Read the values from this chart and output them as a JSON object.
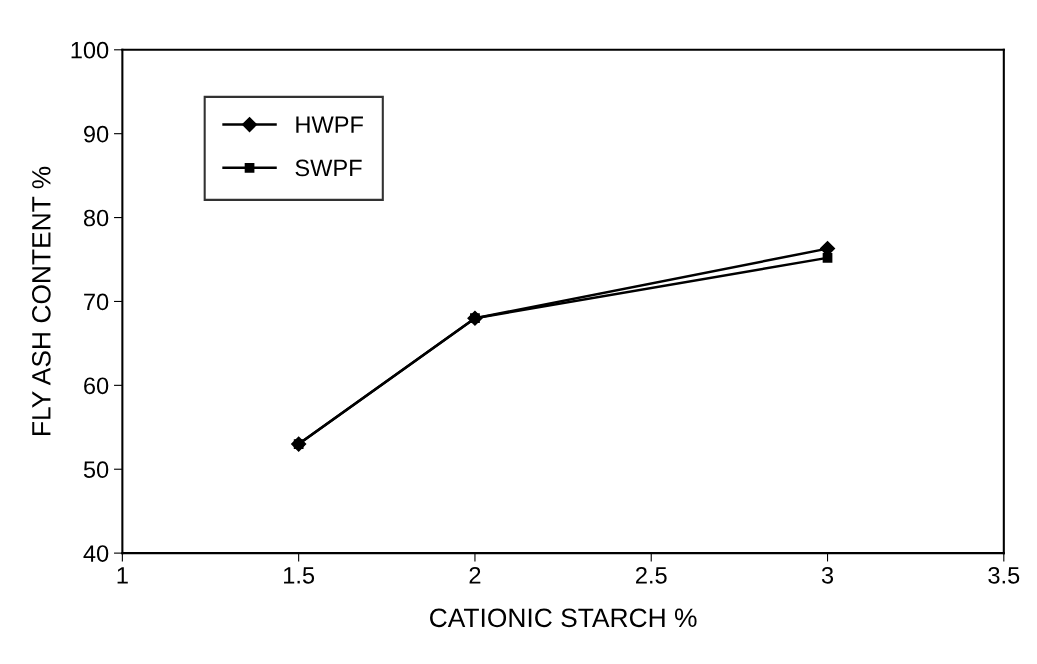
{
  "chart_data": {
    "type": "line",
    "xlabel": "CATIONIC STARCH %",
    "ylabel": "FLY ASH CONTENT %",
    "x": [
      1.5,
      2,
      3
    ],
    "series": [
      {
        "name": "HWPF",
        "color": "#000000",
        "marker": "diamond",
        "values": [
          53,
          68,
          76.3
        ]
      },
      {
        "name": "SWPF",
        "color": "#000000",
        "marker": "square",
        "values": [
          53,
          68,
          75.2
        ]
      }
    ],
    "xlim": [
      1,
      3.5
    ],
    "xticks": [
      1,
      1.5,
      2,
      2.5,
      3,
      3.5
    ],
    "ylim": [
      40,
      100
    ],
    "yticks": [
      40,
      50,
      60,
      70,
      80,
      90,
      100
    ],
    "grid": false,
    "legend": "top left",
    "line_style": "solid"
  }
}
